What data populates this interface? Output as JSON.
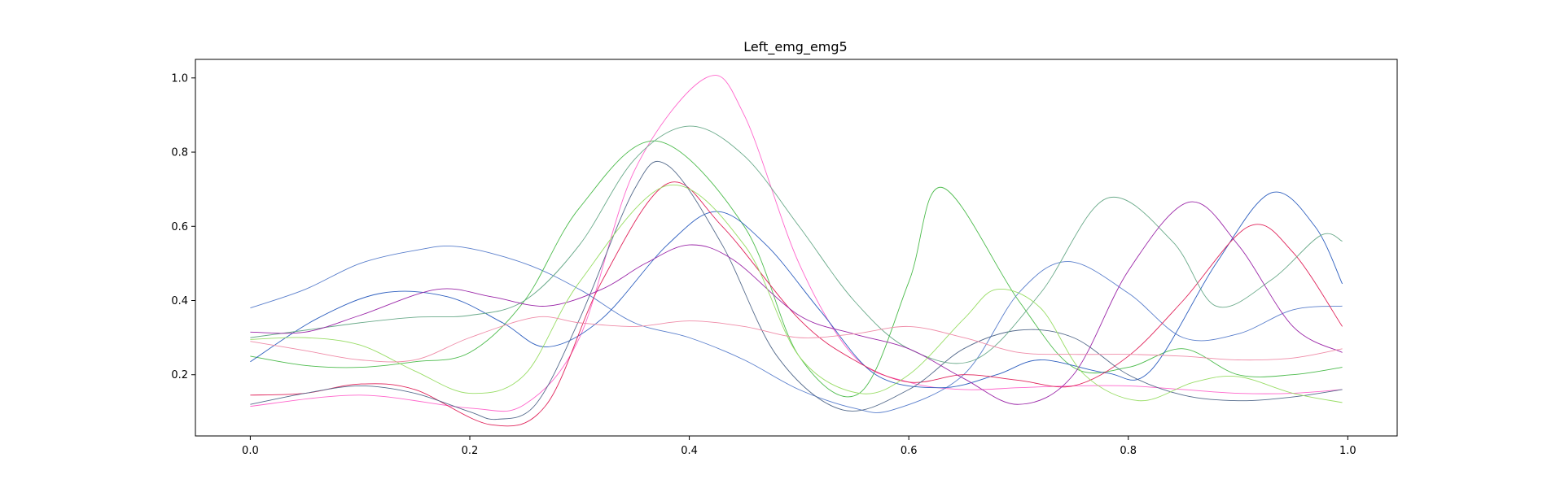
{
  "chart_data": {
    "type": "line",
    "title": "Left_emg_emg5",
    "xlabel": "",
    "ylabel": "",
    "xlim": [
      -0.05,
      1.045
    ],
    "ylim": [
      0.035,
      1.05
    ],
    "grid": false,
    "xticks": [
      {
        "value": 0.0,
        "label": "0.0"
      },
      {
        "value": 0.2,
        "label": "0.2"
      },
      {
        "value": 0.4,
        "label": "0.4"
      },
      {
        "value": 0.6,
        "label": "0.6"
      },
      {
        "value": 0.8,
        "label": "0.8"
      },
      {
        "value": 1.0,
        "label": "1.0"
      }
    ],
    "yticks": [
      {
        "value": 0.2,
        "label": "0.2"
      },
      {
        "value": 0.4,
        "label": "0.4"
      },
      {
        "value": 0.6,
        "label": "0.6"
      },
      {
        "value": 0.8,
        "label": "0.8"
      },
      {
        "value": 1.0,
        "label": "1.0"
      }
    ],
    "series": [
      {
        "color": "#ff66cc",
        "x": [
          0,
          0.1,
          0.2,
          0.25,
          0.3,
          0.35,
          0.415,
          0.45,
          0.5,
          0.55,
          0.6,
          0.65,
          0.7,
          0.75,
          0.8,
          0.85,
          0.9,
          0.95,
          0.995
        ],
        "y": [
          0.115,
          0.145,
          0.11,
          0.12,
          0.3,
          0.75,
          1.0,
          0.9,
          0.5,
          0.25,
          0.18,
          0.16,
          0.165,
          0.17,
          0.17,
          0.16,
          0.15,
          0.15,
          0.16
        ]
      },
      {
        "color": "#5a7fcc",
        "x": [
          0,
          0.05,
          0.1,
          0.15,
          0.19,
          0.25,
          0.3,
          0.35,
          0.4,
          0.45,
          0.5,
          0.55,
          0.585,
          0.65,
          0.7,
          0.745,
          0.8,
          0.85,
          0.9,
          0.95,
          0.995
        ],
        "y": [
          0.38,
          0.43,
          0.5,
          0.535,
          0.545,
          0.5,
          0.43,
          0.34,
          0.3,
          0.24,
          0.16,
          0.11,
          0.105,
          0.2,
          0.42,
          0.505,
          0.42,
          0.3,
          0.31,
          0.375,
          0.385
        ]
      },
      {
        "color": "#4cbb4c",
        "x": [
          0,
          0.05,
          0.1,
          0.15,
          0.2,
          0.25,
          0.3,
          0.37,
          0.45,
          0.5,
          0.555,
          0.6,
          0.63,
          0.7,
          0.75,
          0.8,
          0.85,
          0.9,
          0.95,
          0.995
        ],
        "y": [
          0.25,
          0.225,
          0.22,
          0.235,
          0.26,
          0.4,
          0.65,
          0.83,
          0.6,
          0.25,
          0.15,
          0.45,
          0.705,
          0.4,
          0.22,
          0.22,
          0.27,
          0.2,
          0.2,
          0.22
        ]
      },
      {
        "color": "#2e5fbf",
        "x": [
          0,
          0.06,
          0.12,
          0.18,
          0.23,
          0.27,
          0.32,
          0.38,
          0.425,
          0.47,
          0.52,
          0.57,
          0.63,
          0.68,
          0.72,
          0.78,
          0.82,
          0.88,
          0.93,
          0.97,
          0.995
        ],
        "y": [
          0.235,
          0.35,
          0.42,
          0.41,
          0.34,
          0.275,
          0.35,
          0.55,
          0.64,
          0.55,
          0.37,
          0.2,
          0.165,
          0.2,
          0.24,
          0.205,
          0.21,
          0.5,
          0.69,
          0.6,
          0.445
        ]
      },
      {
        "color": "#e0235a",
        "x": [
          0,
          0.05,
          0.1,
          0.15,
          0.22,
          0.27,
          0.32,
          0.38,
          0.43,
          0.5,
          0.55,
          0.6,
          0.65,
          0.7,
          0.75,
          0.8,
          0.85,
          0.91,
          0.95,
          0.995
        ],
        "y": [
          0.145,
          0.15,
          0.175,
          0.16,
          0.065,
          0.12,
          0.45,
          0.715,
          0.6,
          0.35,
          0.24,
          0.18,
          0.2,
          0.185,
          0.17,
          0.25,
          0.4,
          0.6,
          0.53,
          0.33
        ]
      },
      {
        "color": "#556b8c",
        "x": [
          0,
          0.05,
          0.1,
          0.15,
          0.2,
          0.225,
          0.26,
          0.3,
          0.35,
          0.38,
          0.43,
          0.48,
          0.54,
          0.6,
          0.65,
          0.7,
          0.75,
          0.8,
          0.85,
          0.9,
          0.95,
          0.995
        ],
        "y": [
          0.12,
          0.15,
          0.17,
          0.15,
          0.1,
          0.08,
          0.12,
          0.35,
          0.7,
          0.765,
          0.55,
          0.25,
          0.105,
          0.16,
          0.27,
          0.32,
          0.3,
          0.2,
          0.145,
          0.13,
          0.14,
          0.16
        ]
      },
      {
        "color": "#6aaa8a",
        "x": [
          0,
          0.05,
          0.1,
          0.15,
          0.2,
          0.25,
          0.3,
          0.35,
          0.4,
          0.45,
          0.5,
          0.55,
          0.6,
          0.66,
          0.72,
          0.78,
          0.84,
          0.88,
          0.93,
          0.975,
          0.995
        ],
        "y": [
          0.3,
          0.32,
          0.34,
          0.355,
          0.36,
          0.4,
          0.55,
          0.78,
          0.87,
          0.79,
          0.6,
          0.4,
          0.27,
          0.24,
          0.42,
          0.675,
          0.56,
          0.385,
          0.455,
          0.575,
          0.56
        ]
      },
      {
        "color": "#9b27a8",
        "x": [
          0,
          0.05,
          0.1,
          0.17,
          0.22,
          0.27,
          0.32,
          0.36,
          0.4,
          0.44,
          0.5,
          0.55,
          0.6,
          0.65,
          0.7,
          0.75,
          0.8,
          0.855,
          0.9,
          0.95,
          0.995
        ],
        "y": [
          0.315,
          0.315,
          0.36,
          0.43,
          0.41,
          0.385,
          0.43,
          0.5,
          0.55,
          0.51,
          0.36,
          0.31,
          0.27,
          0.19,
          0.12,
          0.2,
          0.48,
          0.665,
          0.55,
          0.33,
          0.26
        ]
      },
      {
        "color": "#99dd66",
        "x": [
          0,
          0.05,
          0.1,
          0.15,
          0.2,
          0.25,
          0.3,
          0.38,
          0.45,
          0.5,
          0.555,
          0.6,
          0.65,
          0.68,
          0.72,
          0.76,
          0.81,
          0.86,
          0.9,
          0.95,
          0.995
        ],
        "y": [
          0.295,
          0.3,
          0.28,
          0.21,
          0.15,
          0.2,
          0.45,
          0.71,
          0.55,
          0.25,
          0.15,
          0.2,
          0.35,
          0.43,
          0.38,
          0.2,
          0.13,
          0.18,
          0.195,
          0.15,
          0.125
        ]
      },
      {
        "color": "#ef8ca8",
        "x": [
          0,
          0.05,
          0.1,
          0.15,
          0.2,
          0.26,
          0.3,
          0.35,
          0.4,
          0.45,
          0.5,
          0.55,
          0.6,
          0.65,
          0.7,
          0.75,
          0.8,
          0.85,
          0.9,
          0.95,
          0.995
        ],
        "y": [
          0.29,
          0.265,
          0.24,
          0.24,
          0.3,
          0.355,
          0.34,
          0.33,
          0.345,
          0.33,
          0.3,
          0.31,
          0.33,
          0.3,
          0.26,
          0.255,
          0.255,
          0.25,
          0.24,
          0.245,
          0.27
        ]
      }
    ]
  }
}
